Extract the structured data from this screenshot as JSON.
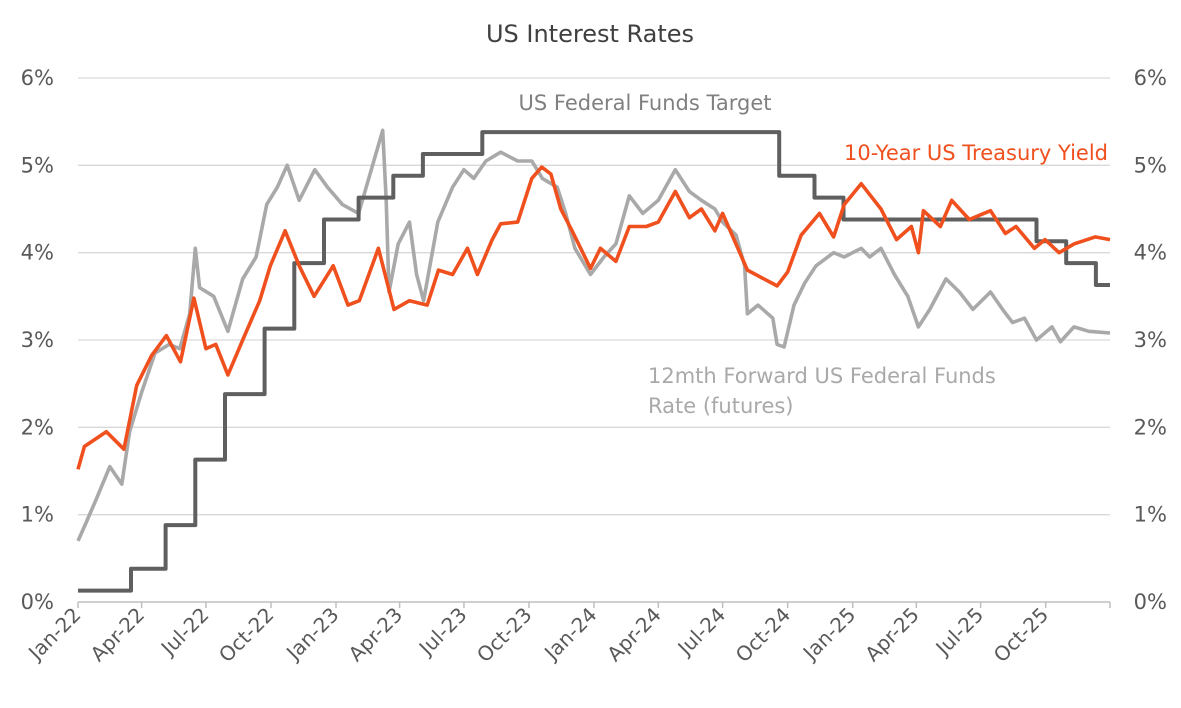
{
  "chart_data": {
    "type": "line",
    "title": "US Interest Rates",
    "y_axis": {
      "ylim": [
        0,
        6
      ],
      "tick_labels": [
        "0%",
        "1%",
        "2%",
        "3%",
        "4%",
        "5%",
        "6%"
      ],
      "tick_values": [
        0,
        1,
        2,
        3,
        4,
        5,
        6
      ],
      "mirrored_right": true
    },
    "x_axis": {
      "range": [
        "2022-01-01",
        "2025-12-31"
      ],
      "tick_labels": [
        "Jan-22",
        "Apr-22",
        "Jul-22",
        "Oct-22",
        "Jan-23",
        "Apr-23",
        "Jul-23",
        "Oct-23",
        "Jan-24",
        "Apr-24",
        "Jul-24",
        "Oct-24",
        "Jan-25",
        "Apr-25",
        "Jul-25",
        "Oct-25"
      ],
      "tick_dates": [
        "2022-01-01",
        "2022-04-01",
        "2022-07-01",
        "2022-10-01",
        "2023-01-01",
        "2023-04-01",
        "2023-07-01",
        "2023-10-01",
        "2024-01-01",
        "2024-04-01",
        "2024-07-01",
        "2024-10-01",
        "2025-01-01",
        "2025-04-01",
        "2025-07-01",
        "2025-10-01"
      ]
    },
    "grid": "horizontal",
    "legend": "none",
    "series": [
      {
        "name": "US Federal Funds Target",
        "color": "#5f5f5f",
        "style": "step",
        "points": [
          [
            "2022-01-01",
            0.13
          ],
          [
            "2022-03-17",
            0.38
          ],
          [
            "2022-05-05",
            0.88
          ],
          [
            "2022-06-16",
            1.63
          ],
          [
            "2022-07-28",
            2.38
          ],
          [
            "2022-09-22",
            3.13
          ],
          [
            "2022-11-03",
            3.88
          ],
          [
            "2022-12-15",
            4.38
          ],
          [
            "2023-02-02",
            4.63
          ],
          [
            "2023-03-23",
            4.88
          ],
          [
            "2023-05-04",
            5.13
          ],
          [
            "2023-07-27",
            5.38
          ],
          [
            "2024-09-19",
            4.88
          ],
          [
            "2024-11-08",
            4.63
          ],
          [
            "2024-12-19",
            4.38
          ],
          [
            "2025-09-18",
            4.13
          ],
          [
            "2025-10-30",
            3.88
          ],
          [
            "2025-12-11",
            3.63
          ],
          [
            "2025-12-31",
            3.63
          ]
        ]
      },
      {
        "name": "10-Year US Treasury Yield",
        "color": "#f0501e",
        "points": [
          [
            "2022-01-01",
            1.52
          ],
          [
            "2022-01-10",
            1.78
          ],
          [
            "2022-02-10",
            1.95
          ],
          [
            "2022-03-07",
            1.75
          ],
          [
            "2022-03-25",
            2.48
          ],
          [
            "2022-04-15",
            2.82
          ],
          [
            "2022-05-06",
            3.05
          ],
          [
            "2022-05-26",
            2.75
          ],
          [
            "2022-06-14",
            3.48
          ],
          [
            "2022-07-01",
            2.9
          ],
          [
            "2022-07-15",
            2.95
          ],
          [
            "2022-08-01",
            2.6
          ],
          [
            "2022-08-22",
            3.0
          ],
          [
            "2022-09-15",
            3.45
          ],
          [
            "2022-09-30",
            3.85
          ],
          [
            "2022-10-21",
            4.25
          ],
          [
            "2022-11-10",
            3.85
          ],
          [
            "2022-12-01",
            3.5
          ],
          [
            "2022-12-28",
            3.85
          ],
          [
            "2023-01-18",
            3.4
          ],
          [
            "2023-02-03",
            3.45
          ],
          [
            "2023-03-02",
            4.05
          ],
          [
            "2023-03-24",
            3.35
          ],
          [
            "2023-04-15",
            3.45
          ],
          [
            "2023-05-10",
            3.4
          ],
          [
            "2023-05-26",
            3.8
          ],
          [
            "2023-06-15",
            3.75
          ],
          [
            "2023-07-06",
            4.05
          ],
          [
            "2023-07-20",
            3.75
          ],
          [
            "2023-08-10",
            4.15
          ],
          [
            "2023-08-22",
            4.33
          ],
          [
            "2023-09-15",
            4.35
          ],
          [
            "2023-10-05",
            4.85
          ],
          [
            "2023-10-19",
            4.98
          ],
          [
            "2023-11-01",
            4.9
          ],
          [
            "2023-11-15",
            4.5
          ],
          [
            "2023-12-01",
            4.25
          ],
          [
            "2023-12-27",
            3.82
          ],
          [
            "2024-01-10",
            4.05
          ],
          [
            "2024-02-01",
            3.9
          ],
          [
            "2024-02-20",
            4.3
          ],
          [
            "2024-03-15",
            4.3
          ],
          [
            "2024-04-01",
            4.35
          ],
          [
            "2024-04-25",
            4.7
          ],
          [
            "2024-05-15",
            4.4
          ],
          [
            "2024-06-01",
            4.5
          ],
          [
            "2024-06-20",
            4.25
          ],
          [
            "2024-07-01",
            4.45
          ],
          [
            "2024-08-05",
            3.8
          ],
          [
            "2024-09-16",
            3.62
          ],
          [
            "2024-10-01",
            3.78
          ],
          [
            "2024-10-20",
            4.2
          ],
          [
            "2024-11-15",
            4.45
          ],
          [
            "2024-12-05",
            4.18
          ],
          [
            "2024-12-20",
            4.55
          ],
          [
            "2025-01-13",
            4.79
          ],
          [
            "2025-02-10",
            4.5
          ],
          [
            "2025-03-04",
            4.15
          ],
          [
            "2025-03-25",
            4.3
          ],
          [
            "2025-04-04",
            4.0
          ],
          [
            "2025-04-11",
            4.48
          ],
          [
            "2025-05-05",
            4.3
          ],
          [
            "2025-05-21",
            4.6
          ],
          [
            "2025-06-15",
            4.38
          ],
          [
            "2025-07-15",
            4.48
          ],
          [
            "2025-08-05",
            4.22
          ],
          [
            "2025-08-20",
            4.3
          ],
          [
            "2025-09-15",
            4.05
          ],
          [
            "2025-09-30",
            4.15
          ],
          [
            "2025-10-20",
            4.0
          ],
          [
            "2025-11-10",
            4.1
          ],
          [
            "2025-12-10",
            4.18
          ],
          [
            "2025-12-31",
            4.15
          ]
        ]
      },
      {
        "name": "12mth Forward US Federal Funds Rate (futures)",
        "color": "#a9a9a9",
        "points": [
          [
            "2022-01-01",
            0.7
          ],
          [
            "2022-01-12",
            0.9
          ],
          [
            "2022-01-28",
            1.2
          ],
          [
            "2022-02-15",
            1.55
          ],
          [
            "2022-03-04",
            1.35
          ],
          [
            "2022-03-15",
            1.95
          ],
          [
            "2022-04-01",
            2.4
          ],
          [
            "2022-04-20",
            2.85
          ],
          [
            "2022-05-10",
            2.95
          ],
          [
            "2022-05-25",
            2.9
          ],
          [
            "2022-06-08",
            3.3
          ],
          [
            "2022-06-16",
            4.05
          ],
          [
            "2022-06-22",
            3.6
          ],
          [
            "2022-07-12",
            3.5
          ],
          [
            "2022-08-01",
            3.1
          ],
          [
            "2022-08-22",
            3.7
          ],
          [
            "2022-09-10",
            3.95
          ],
          [
            "2022-09-25",
            4.55
          ],
          [
            "2022-10-10",
            4.75
          ],
          [
            "2022-10-24",
            5.0
          ],
          [
            "2022-11-10",
            4.6
          ],
          [
            "2022-12-02",
            4.95
          ],
          [
            "2022-12-20",
            4.75
          ],
          [
            "2023-01-10",
            4.55
          ],
          [
            "2023-02-02",
            4.45
          ],
          [
            "2023-02-20",
            4.95
          ],
          [
            "2023-03-08",
            5.4
          ],
          [
            "2023-03-13",
            4.6
          ],
          [
            "2023-03-17",
            3.55
          ],
          [
            "2023-03-30",
            4.1
          ],
          [
            "2023-04-15",
            4.35
          ],
          [
            "2023-04-25",
            3.75
          ],
          [
            "2023-05-05",
            3.45
          ],
          [
            "2023-05-25",
            4.35
          ],
          [
            "2023-06-15",
            4.75
          ],
          [
            "2023-07-01",
            4.95
          ],
          [
            "2023-07-15",
            4.85
          ],
          [
            "2023-08-01",
            5.05
          ],
          [
            "2023-08-22",
            5.15
          ],
          [
            "2023-09-15",
            5.05
          ],
          [
            "2023-10-05",
            5.05
          ],
          [
            "2023-10-20",
            4.85
          ],
          [
            "2023-11-10",
            4.75
          ],
          [
            "2023-11-22",
            4.45
          ],
          [
            "2023-12-05",
            4.05
          ],
          [
            "2023-12-27",
            3.75
          ],
          [
            "2024-01-15",
            3.95
          ],
          [
            "2024-02-01",
            4.1
          ],
          [
            "2024-02-20",
            4.65
          ],
          [
            "2024-03-10",
            4.45
          ],
          [
            "2024-04-01",
            4.6
          ],
          [
            "2024-04-25",
            4.95
          ],
          [
            "2024-05-15",
            4.7
          ],
          [
            "2024-06-01",
            4.6
          ],
          [
            "2024-06-20",
            4.5
          ],
          [
            "2024-07-01",
            4.35
          ],
          [
            "2024-07-20",
            4.2
          ],
          [
            "2024-08-01",
            3.85
          ],
          [
            "2024-08-05",
            3.3
          ],
          [
            "2024-08-20",
            3.4
          ],
          [
            "2024-09-10",
            3.25
          ],
          [
            "2024-09-16",
            2.95
          ],
          [
            "2024-09-26",
            2.92
          ],
          [
            "2024-10-10",
            3.4
          ],
          [
            "2024-10-25",
            3.65
          ],
          [
            "2024-11-10",
            3.85
          ],
          [
            "2024-12-05",
            4.0
          ],
          [
            "2024-12-20",
            3.95
          ],
          [
            "2025-01-13",
            4.05
          ],
          [
            "2025-01-25",
            3.95
          ],
          [
            "2025-02-10",
            4.05
          ],
          [
            "2025-03-01",
            3.75
          ],
          [
            "2025-03-20",
            3.5
          ],
          [
            "2025-04-04",
            3.15
          ],
          [
            "2025-04-20",
            3.35
          ],
          [
            "2025-05-13",
            3.7
          ],
          [
            "2025-06-01",
            3.55
          ],
          [
            "2025-06-20",
            3.35
          ],
          [
            "2025-07-15",
            3.55
          ],
          [
            "2025-08-01",
            3.35
          ],
          [
            "2025-08-15",
            3.2
          ],
          [
            "2025-09-01",
            3.25
          ],
          [
            "2025-09-18",
            3.0
          ],
          [
            "2025-10-10",
            3.15
          ],
          [
            "2025-10-22",
            2.98
          ],
          [
            "2025-11-10",
            3.15
          ],
          [
            "2025-12-01",
            3.1
          ],
          [
            "2025-12-31",
            3.08
          ]
        ]
      }
    ],
    "annotations": [
      {
        "text": "US Federal Funds Target",
        "color": "#808080"
      },
      {
        "text": "10-Year US Treasury Yield",
        "color": "#f0501e"
      },
      {
        "text": "12mth Forward US Federal Funds",
        "color": "#a9a9a9"
      },
      {
        "text": "Rate (futures)",
        "color": "#a9a9a9"
      }
    ]
  }
}
